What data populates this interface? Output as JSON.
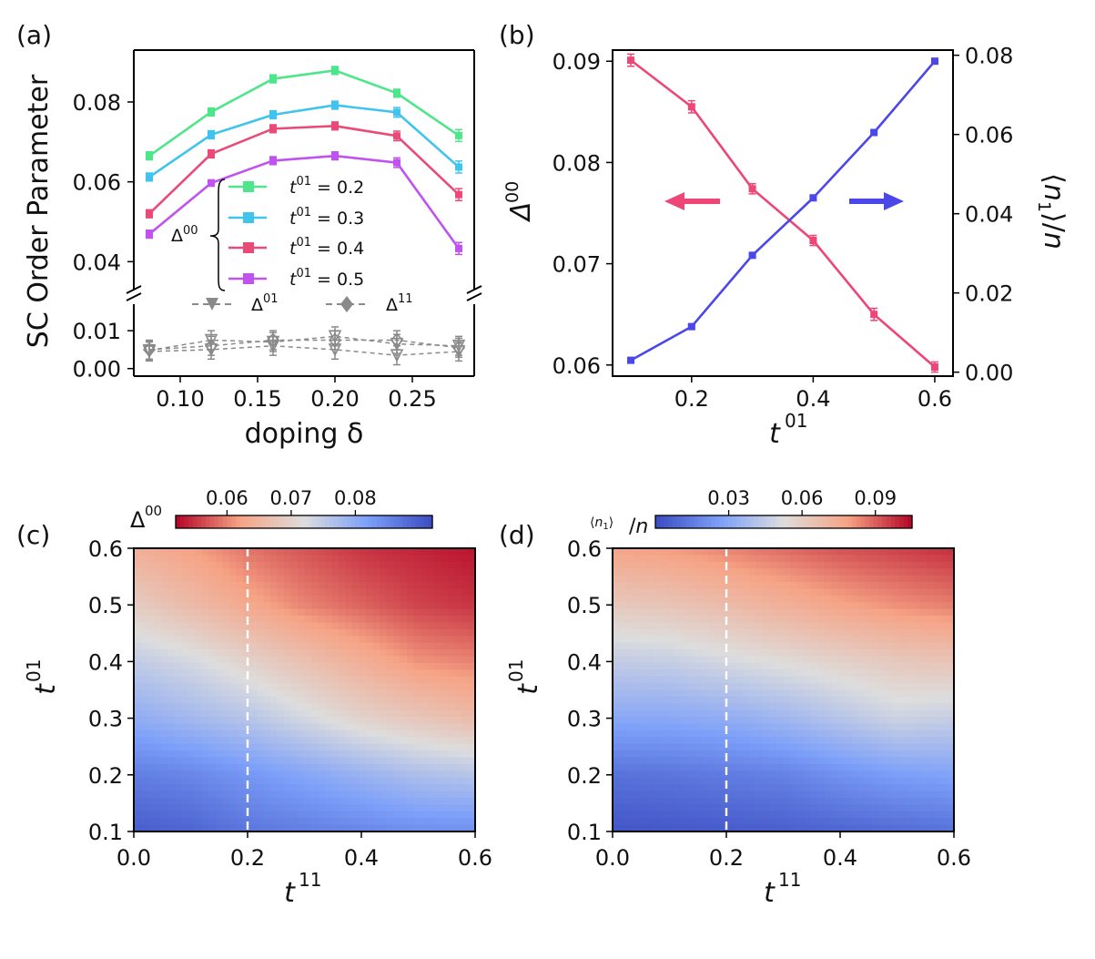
{
  "chart_data": [
    {
      "panel": "(a)",
      "type": "line",
      "xlabel": "doping δ",
      "ylabel": "SC Order Parameter",
      "xlim": [
        0.07,
        0.29
      ],
      "x_ticks": [
        "0.10",
        "0.15",
        "0.20",
        "0.25"
      ],
      "x_tick_values": [
        0.1,
        0.15,
        0.2,
        0.25
      ],
      "upper": {
        "ylim": [
          0.033,
          0.093
        ],
        "y_ticks": [
          "0.04",
          "0.06",
          "0.08"
        ],
        "y_tick_values": [
          0.04,
          0.06,
          0.08
        ],
        "x": [
          0.08,
          0.12,
          0.16,
          0.2,
          0.24,
          0.28
        ],
        "series": [
          {
            "name": "t01 = 0.2",
            "values": [
              0.0665,
              0.0775,
              0.0858,
              0.0879,
              0.0822,
              0.0716
            ],
            "errors": [
              0.001,
              0.001,
              0.001,
              0.001,
              0.001,
              0.0015
            ],
            "color": "#4ee68a"
          },
          {
            "name": "t01 = 0.3",
            "values": [
              0.0612,
              0.0718,
              0.0768,
              0.0792,
              0.0774,
              0.0637
            ],
            "errors": [
              0.001,
              0.001,
              0.001,
              0.001,
              0.0012,
              0.0015
            ],
            "color": "#3fc4ee"
          },
          {
            "name": "t01 = 0.4",
            "values": [
              0.052,
              0.067,
              0.0733,
              0.074,
              0.0715,
              0.0568
            ],
            "errors": [
              0.001,
              0.001,
              0.001,
              0.001,
              0.0012,
              0.0015
            ],
            "color": "#ea4a78"
          },
          {
            "name": "t01 = 0.5",
            "values": [
              0.0469,
              0.0597,
              0.0653,
              0.0665,
              0.0648,
              0.0433
            ],
            "errors": [
              0.001,
              0.0008,
              0.001,
              0.001,
              0.0012,
              0.0015
            ],
            "color": "#c052ef"
          }
        ],
        "legend_group_label": "Δ00",
        "legend_labels": [
          "t01 = 0.2",
          "t01 = 0.3",
          "t01 = 0.4",
          "t01 = 0.5"
        ]
      },
      "lower": {
        "ylim": [
          -0.002,
          0.017
        ],
        "y_ticks": [
          "0.00",
          "0.01"
        ],
        "y_tick_values": [
          0.0,
          0.01
        ],
        "x": [
          0.08,
          0.12,
          0.16,
          0.2,
          0.24,
          0.28
        ],
        "series": [
          {
            "name": "Δ01",
            "marker": "triangle-down",
            "lines": [
              [
                0.0048,
                0.0075,
                0.007,
                0.0085,
                0.0065,
                0.006
              ],
              [
                0.0045,
                0.005,
                0.006,
                0.005,
                0.0035,
                0.0045
              ]
            ],
            "errors": 0.0025,
            "color": "#8a8a8a"
          },
          {
            "name": "Δ11",
            "marker": "diamond",
            "lines": [
              [
                0.005,
                0.006,
                0.0075,
                0.0075,
                0.0075,
                0.0055
              ]
            ],
            "errors": 0.0025,
            "color": "#8a8a8a"
          }
        ],
        "legend_labels": [
          "Δ01",
          "Δ11"
        ]
      }
    },
    {
      "panel": "(b)",
      "type": "line",
      "xlabel": "t01",
      "ylabel_left": "Δ00",
      "ylabel_right": "⟨n1⟩/n",
      "x": [
        0.1,
        0.2,
        0.3,
        0.4,
        0.5,
        0.6
      ],
      "xlim": [
        0.07,
        0.63
      ],
      "x_ticks": [
        "0.2",
        "0.4",
        "0.6"
      ],
      "x_tick_values": [
        0.2,
        0.4,
        0.6
      ],
      "ylim_left": [
        0.0589,
        0.0911
      ],
      "y_ticks_left": [
        "0.06",
        "0.07",
        "0.08",
        "0.09"
      ],
      "y_tick_values_left": [
        0.06,
        0.07,
        0.08,
        0.09
      ],
      "ylim_right": [
        -0.001,
        0.0813
      ],
      "y_ticks_right": [
        "0.00",
        "0.02",
        "0.04",
        "0.06",
        "0.08"
      ],
      "y_tick_values_right": [
        0.0,
        0.02,
        0.04,
        0.06,
        0.08
      ],
      "series": [
        {
          "name": "Δ00",
          "axis": "left",
          "values": [
            0.0901,
            0.0855,
            0.0774,
            0.0723,
            0.065,
            0.0598
          ],
          "errors": [
            0.0006,
            0.0006,
            0.0005,
            0.0005,
            0.0006,
            0.0005
          ],
          "color": "#ee4676"
        },
        {
          "name": "⟨n1⟩/n",
          "axis": "right",
          "values": [
            0.003,
            0.0115,
            0.0295,
            0.044,
            0.0605,
            0.0785
          ],
          "errors": [
            0.0004,
            0.0004,
            0.0004,
            0.0004,
            0.0004,
            0.0004
          ],
          "color": "#4b47e8"
        }
      ],
      "annotations": [
        "left arrow (Δ00 on left axis)",
        "right arrow (⟨n1⟩/n on right axis)"
      ]
    },
    {
      "panel": "(c)",
      "type": "heatmap",
      "xlabel": "t11",
      "ylabel": "t01",
      "xlim": [
        0.0,
        0.6
      ],
      "ylim": [
        0.1,
        0.6
      ],
      "x_ticks": [
        "0.0",
        "0.2",
        "0.4",
        "0.6"
      ],
      "x_tick_values": [
        0.0,
        0.2,
        0.4,
        0.6
      ],
      "y_ticks": [
        "0.1",
        "0.2",
        "0.3",
        "0.4",
        "0.5",
        "0.6"
      ],
      "y_tick_values": [
        0.1,
        0.2,
        0.3,
        0.4,
        0.5,
        0.6
      ],
      "dashed_line_x": 0.2,
      "colorbar_label": "Δ00",
      "colorbar_range": [
        0.052,
        0.092
      ],
      "colorbar_ticks": [
        "0.06",
        "0.07",
        "0.08"
      ],
      "colorbar_tick_values": [
        0.06,
        0.07,
        0.08
      ],
      "colormap": "coolwarm_r",
      "grid_x": [
        0.0,
        0.1,
        0.2,
        0.3,
        0.4,
        0.5,
        0.6
      ],
      "grid_y": [
        0.1,
        0.2,
        0.3,
        0.4,
        0.5,
        0.6
      ],
      "values": [
        [
          0.09,
          0.089,
          0.087,
          0.086,
          0.085,
          0.084,
          0.084
        ],
        [
          0.086,
          0.085,
          0.083,
          0.081,
          0.079,
          0.077,
          0.076
        ],
        [
          0.08,
          0.078,
          0.076,
          0.073,
          0.07,
          0.068,
          0.066
        ],
        [
          0.075,
          0.073,
          0.07,
          0.067,
          0.064,
          0.061,
          0.06
        ],
        [
          0.069,
          0.066,
          0.063,
          0.06,
          0.058,
          0.056,
          0.055
        ],
        [
          0.064,
          0.062,
          0.059,
          0.057,
          0.055,
          0.054,
          0.053
        ]
      ]
    },
    {
      "panel": "(d)",
      "type": "heatmap",
      "xlabel": "t11",
      "ylabel": "t01",
      "xlim": [
        0.0,
        0.6
      ],
      "ylim": [
        0.1,
        0.6
      ],
      "x_ticks": [
        "0.0",
        "0.2",
        "0.4",
        "0.6"
      ],
      "x_tick_values": [
        0.0,
        0.2,
        0.4,
        0.6
      ],
      "y_ticks": [
        "0.1",
        "0.2",
        "0.3",
        "0.4",
        "0.5",
        "0.6"
      ],
      "y_tick_values": [
        0.1,
        0.2,
        0.3,
        0.4,
        0.5,
        0.6
      ],
      "dashed_line_x": 0.2,
      "colorbar_label": "⟨n1⟩/n",
      "colorbar_range": [
        0.0,
        0.105
      ],
      "colorbar_ticks": [
        "0.03",
        "0.06",
        "0.09"
      ],
      "colorbar_tick_values": [
        0.03,
        0.06,
        0.09
      ],
      "colormap": "coolwarm",
      "grid_x": [
        0.0,
        0.1,
        0.2,
        0.3,
        0.4,
        0.5,
        0.6
      ],
      "grid_y": [
        0.1,
        0.2,
        0.3,
        0.4,
        0.5,
        0.6
      ],
      "values": [
        [
          0.003,
          0.004,
          0.005,
          0.006,
          0.008,
          0.01,
          0.012
        ],
        [
          0.012,
          0.013,
          0.015,
          0.017,
          0.022,
          0.026,
          0.028
        ],
        [
          0.03,
          0.03,
          0.032,
          0.036,
          0.042,
          0.048,
          0.046
        ],
        [
          0.045,
          0.046,
          0.05,
          0.054,
          0.058,
          0.062,
          0.064
        ],
        [
          0.062,
          0.064,
          0.068,
          0.073,
          0.078,
          0.082,
          0.085
        ],
        [
          0.078,
          0.08,
          0.084,
          0.088,
          0.092,
          0.095,
          0.098
        ]
      ]
    }
  ]
}
